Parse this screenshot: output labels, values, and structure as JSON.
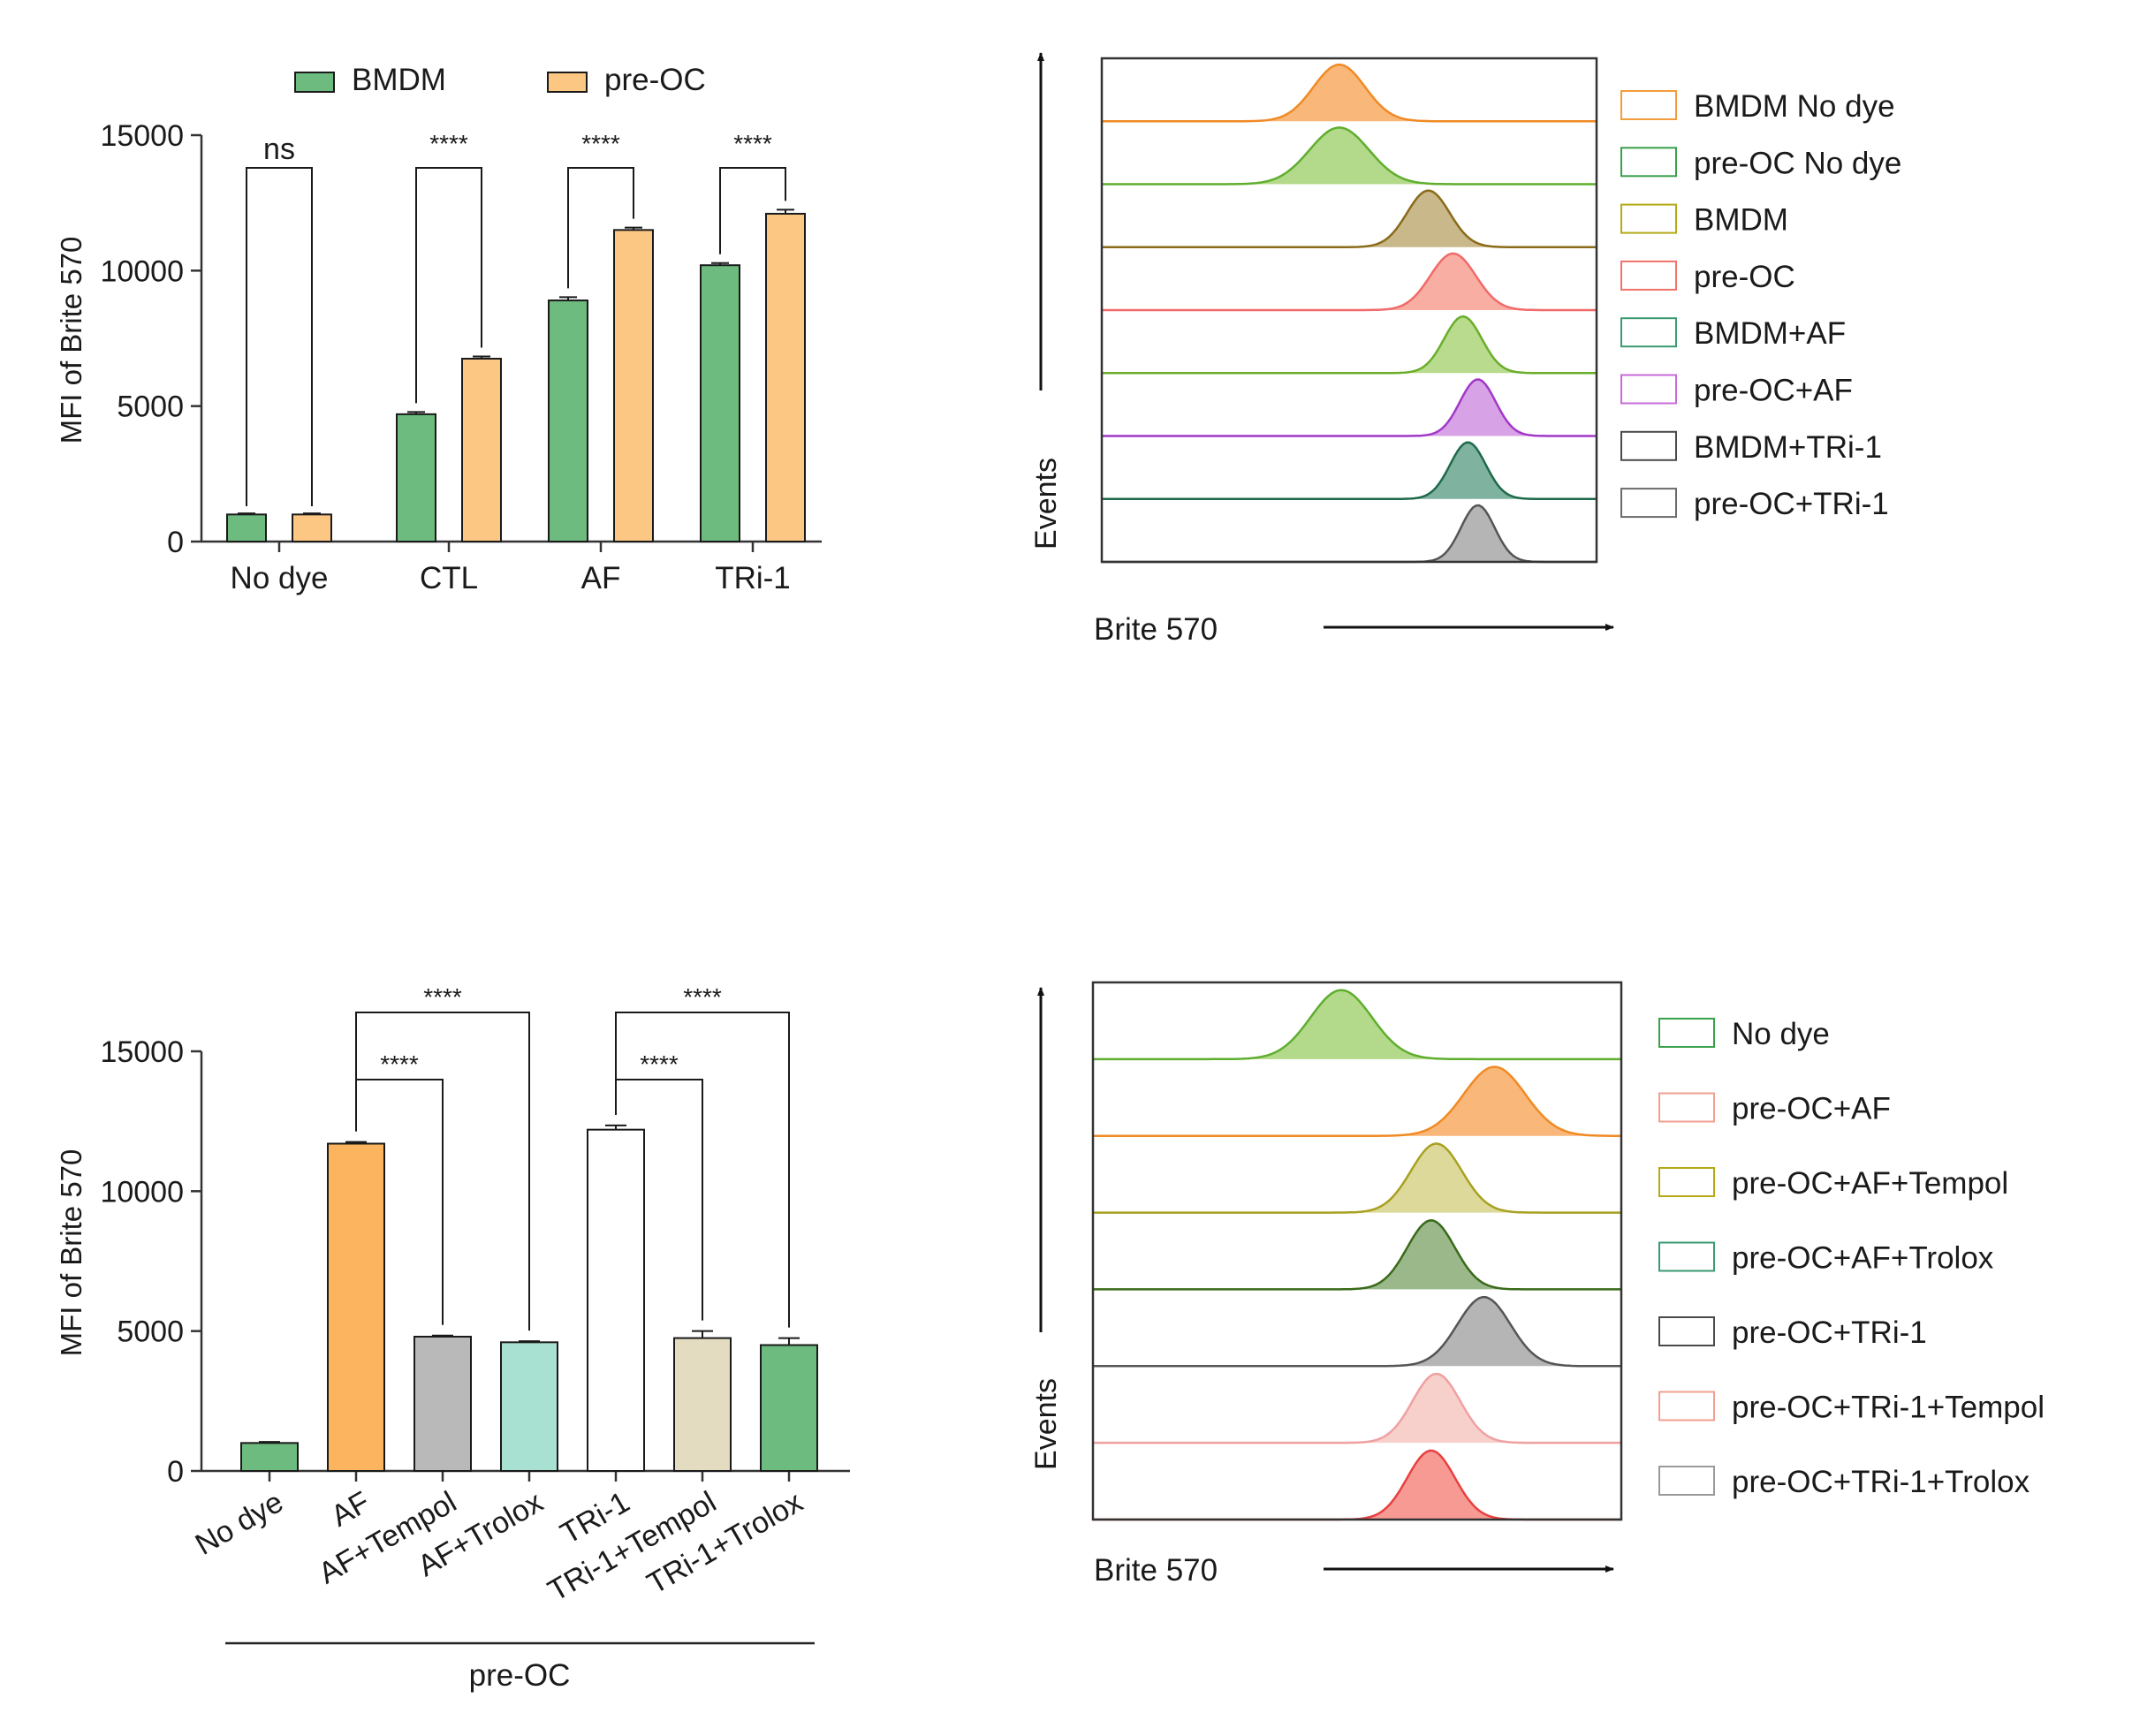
{
  "chart_data": [
    {
      "id": "A",
      "type": "bar",
      "ylabel": "MFI of Brite 570",
      "ylim": [
        0,
        15000
      ],
      "yticks": [
        0,
        5000,
        10000,
        15000
      ],
      "categories": [
        "No dye",
        "CTL",
        "AF",
        "TRi-1"
      ],
      "series": [
        {
          "name": "BMDM",
          "color": "#6dbb7f",
          "values": [
            1000,
            4700,
            8900,
            10200
          ],
          "errors": [
            40,
            80,
            120,
            80
          ]
        },
        {
          "name": "pre-OC",
          "color": "#fcc783",
          "values": [
            1000,
            6750,
            11500,
            12100
          ],
          "errors": [
            40,
            80,
            90,
            150
          ]
        }
      ],
      "annotations": [
        "ns",
        "****",
        "****",
        "****"
      ]
    },
    {
      "id": "B",
      "type": "histogram",
      "xlabel": "Brite 570",
      "ylabel": "Events",
      "legend": [
        {
          "label": "BMDM No dye",
          "color": "#f39c3c"
        },
        {
          "label": "pre-OC No dye",
          "color": "#3aa04a"
        },
        {
          "label": "BMDM",
          "color": "#b5a916"
        },
        {
          "label": "pre-OC",
          "color": "#f0726a"
        },
        {
          "label": "BMDM+AF",
          "color": "#3a9a72"
        },
        {
          "label": "pre-OC+AF",
          "color": "#c86bd8"
        },
        {
          "label": "BMDM+TRi-1",
          "color": "#4a4a4a"
        },
        {
          "label": "pre-OC+TRi-1",
          "color": "#6a6a6a"
        }
      ],
      "traces": [
        {
          "peak": 0.48,
          "width": 0.052,
          "stroke": "#f08a24",
          "fill": "#f9b77a"
        },
        {
          "peak": 0.48,
          "width": 0.06,
          "stroke": "#5fae2e",
          "fill": "#b3d98b"
        },
        {
          "peak": 0.66,
          "width": 0.043,
          "stroke": "#8a6b1a",
          "fill": "#c9b88a"
        },
        {
          "peak": 0.71,
          "width": 0.046,
          "stroke": "#f06a6a",
          "fill": "#f9aea3"
        },
        {
          "peak": 0.73,
          "width": 0.038,
          "stroke": "#6aae2a",
          "fill": "#b8db8d"
        },
        {
          "peak": 0.76,
          "width": 0.036,
          "stroke": "#a238c8",
          "fill": "#d7a2e6"
        },
        {
          "peak": 0.74,
          "width": 0.036,
          "stroke": "#1e6a4a",
          "fill": "#7fb29f"
        },
        {
          "peak": 0.76,
          "width": 0.034,
          "stroke": "#555555",
          "fill": "#b5b5b5"
        }
      ]
    },
    {
      "id": "C",
      "type": "bar",
      "ylabel": "MFI of Brite 570",
      "xgroup_label": "pre-OC",
      "ylim": [
        0,
        15000
      ],
      "yticks": [
        0,
        5000,
        10000,
        15000
      ],
      "categories": [
        "No dye",
        "AF",
        "AF+Tempol",
        "AF+Trolox",
        "TRi-1",
        "TRi-1+Tempol",
        "TRi-1+Trolox"
      ],
      "values": [
        1000,
        11700,
        4800,
        4600,
        12200,
        4750,
        4500
      ],
      "errors": [
        40,
        60,
        40,
        40,
        150,
        250,
        250
      ],
      "colors": [
        "#6dbb7f",
        "#fcb55e",
        "#b9b9b9",
        "#a8e0d2",
        "#ffffff",
        "#e3dcc0",
        "#6dbb7f"
      ],
      "comparisons": [
        {
          "from": 1,
          "to": 2,
          "label": "****"
        },
        {
          "from": 1,
          "to": 3,
          "label": "****"
        },
        {
          "from": 4,
          "to": 5,
          "label": "****"
        },
        {
          "from": 4,
          "to": 6,
          "label": "****"
        }
      ]
    },
    {
      "id": "D",
      "type": "histogram",
      "xlabel": "Brite 570",
      "ylabel": "Events",
      "legend": [
        {
          "label": "No dye",
          "color": "#3aa04a"
        },
        {
          "label": "pre-OC+AF",
          "color": "#f0a090"
        },
        {
          "label": "pre-OC+AF+Tempol",
          "color": "#b5a916"
        },
        {
          "label": "pre-OC+AF+Trolox",
          "color": "#3a9a72"
        },
        {
          "label": "pre-OC+TRi-1",
          "color": "#4a4a4a"
        },
        {
          "label": "pre-OC+TRi-1+Tempol",
          "color": "#f0a090"
        },
        {
          "label": "pre-OC+TRi-1+Trolox",
          "color": "#9a9a9a"
        }
      ],
      "traces": [
        {
          "peak": 0.47,
          "width": 0.058,
          "stroke": "#5fae2e",
          "fill": "#b3d98b"
        },
        {
          "peak": 0.76,
          "width": 0.058,
          "stroke": "#f08a24",
          "fill": "#f9b77a"
        },
        {
          "peak": 0.65,
          "width": 0.048,
          "stroke": "#a8a020",
          "fill": "#ddd99a"
        },
        {
          "peak": 0.64,
          "width": 0.045,
          "stroke": "#3a6a1a",
          "fill": "#9ab88a"
        },
        {
          "peak": 0.74,
          "width": 0.05,
          "stroke": "#555555",
          "fill": "#b5b5b5"
        },
        {
          "peak": 0.65,
          "width": 0.045,
          "stroke": "#f0a0a0",
          "fill": "#f7d0cc"
        },
        {
          "peak": 0.64,
          "width": 0.045,
          "stroke": "#e84040",
          "fill": "#f79a94"
        }
      ]
    }
  ]
}
